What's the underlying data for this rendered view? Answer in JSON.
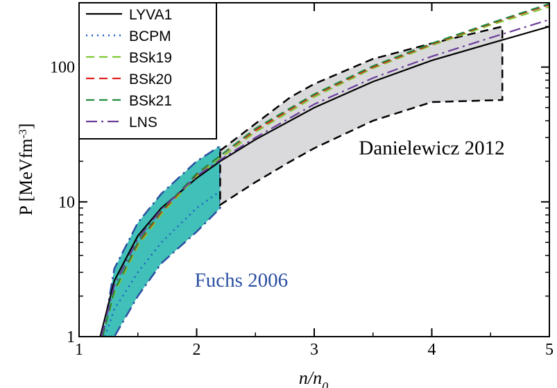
{
  "chart_data": {
    "type": "line",
    "xlabel": "n/n0",
    "ylabel": "P [MeVfm-3]",
    "xlim": [
      1,
      5
    ],
    "ylim": [
      1,
      300
    ],
    "yscale": "log",
    "grid": false,
    "legend_position": "top-left",
    "x_ticks": [
      {
        "value": 1,
        "label": "1"
      },
      {
        "value": 2,
        "label": "2"
      },
      {
        "value": 3,
        "label": "3"
      },
      {
        "value": 4,
        "label": "4"
      },
      {
        "value": 5,
        "label": "5"
      }
    ],
    "y_ticks": [
      {
        "value": 1,
        "label": "1"
      },
      {
        "value": 10,
        "label": "10"
      },
      {
        "value": 100,
        "label": "100"
      }
    ],
    "series": [
      {
        "name": "LYVA1",
        "color": "#000000",
        "dash": "solid",
        "x": [
          1.18,
          1.3,
          1.5,
          1.7,
          2.0,
          2.2,
          2.5,
          3.0,
          3.5,
          4.0,
          4.5,
          5.0
        ],
        "y": [
          1.0,
          2.6,
          5.6,
          9.0,
          15.0,
          20.0,
          29.0,
          50.0,
          78.0,
          112.0,
          150.0,
          200.0
        ]
      },
      {
        "name": "BCPM",
        "color": "#1f5fc8",
        "dash": "dotted",
        "x": [
          1.22,
          1.3,
          1.5,
          1.7,
          2.0,
          2.2
        ],
        "y": [
          1.0,
          1.6,
          3.0,
          5.0,
          9.0,
          12.0
        ]
      },
      {
        "name": "BSk19",
        "color": "#7ec832",
        "dash": "dashed",
        "x": [
          1.2,
          1.3,
          1.5,
          1.7,
          2.0,
          2.2,
          2.5,
          3.0,
          3.5,
          4.0,
          4.5,
          5.0
        ],
        "y": [
          1.0,
          2.1,
          4.7,
          8.1,
          15.5,
          21.0,
          33.0,
          60.0,
          98.0,
          145.0,
          205.0,
          280.0
        ]
      },
      {
        "name": "BSk20",
        "color": "#e02020",
        "dash": "dashed",
        "x": [
          1.2,
          1.3,
          1.5,
          1.7,
          2.0,
          2.2,
          2.5,
          3.0,
          3.5,
          4.0,
          4.5,
          5.0
        ],
        "y": [
          1.0,
          2.2,
          4.9,
          8.4,
          16.0,
          22.0,
          34.0,
          62.0,
          100.0,
          148.0,
          210.0,
          290.0
        ]
      },
      {
        "name": "BSk21",
        "color": "#1e8c3c",
        "dash": "dashed",
        "x": [
          1.2,
          1.3,
          1.5,
          1.7,
          2.0,
          2.2,
          2.5,
          3.0,
          3.5,
          4.0,
          4.5,
          5.0
        ],
        "y": [
          1.0,
          2.2,
          5.0,
          8.6,
          16.2,
          22.0,
          35.0,
          63.0,
          102.0,
          150.0,
          212.0,
          295.0
        ]
      },
      {
        "name": "LNS",
        "color": "#6a3d9a",
        "dash": "dashdot",
        "x": [
          1.19,
          1.3,
          1.5,
          1.7,
          2.0,
          2.2,
          2.5,
          3.0,
          3.5,
          4.0,
          4.5,
          5.0
        ],
        "y": [
          1.0,
          2.4,
          5.3,
          8.8,
          15.5,
          20.5,
          30.0,
          53.0,
          83.0,
          120.0,
          165.0,
          225.0
        ]
      }
    ],
    "bands": [
      {
        "name": "Fuchs 2006",
        "fill": "#40c0b8",
        "edge": "#2a4fa0",
        "edge_dash": "dashdot",
        "x": [
          1.2,
          1.3,
          1.5,
          1.7,
          2.0,
          2.2
        ],
        "y_upper": [
          1.0,
          3.2,
          7.0,
          11.5,
          20.0,
          26.0
        ],
        "y_lower": [
          1.0,
          1.0,
          2.0,
          3.5,
          6.0,
          9.0
        ]
      },
      {
        "name": "Danielewicz 2012",
        "fill": "#dadadc",
        "edge": "#000000",
        "edge_dash": "dashed",
        "x": [
          2.2,
          2.5,
          2.8,
          3.0,
          3.5,
          4.0,
          4.6
        ],
        "y_upper": [
          24.0,
          38.0,
          60.0,
          75.0,
          115.0,
          150.0,
          200.0
        ],
        "y_lower": [
          9.5,
          14.0,
          20.0,
          25.0,
          40.0,
          55.0,
          57.0
        ]
      }
    ],
    "annotations": [
      {
        "text": "Danielewicz 2012",
        "color": "#000000"
      },
      {
        "text": "Fuchs 2006",
        "color": "#2a4fa0"
      }
    ]
  }
}
